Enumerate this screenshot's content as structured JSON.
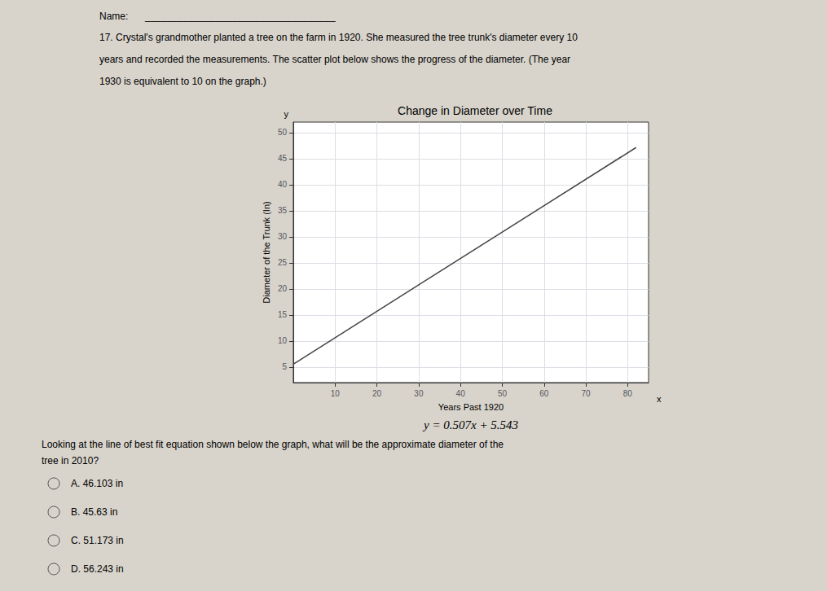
{
  "chart_data": {
    "type": "line",
    "title": "Change in Diameter over Time",
    "x_label": "Years Past 1920",
    "y_label": "Diameter of the Trunk (In)",
    "x": [
      0,
      82
    ],
    "values": [
      5.543,
      47.117
    ],
    "color": "#444444",
    "xlim": [
      0,
      85
    ],
    "xticks": [
      10,
      20,
      30,
      40,
      50,
      60,
      70,
      80
    ],
    "ylim": [
      2,
      52
    ],
    "yticks": [
      5,
      10,
      15,
      20,
      25,
      30,
      35,
      40,
      45,
      50
    ],
    "grid": true,
    "corner_labels": {
      "y": "y",
      "x": "x"
    },
    "equation": "y = 0.507x + 5.543",
    "name_label": "Name:",
    "name_line": "___________________________________",
    "question": [
      "17. Crystal's grandmother planted a tree on the farm in 1920. She measured the tree trunk's diameter every 10",
      "years and recorded the measurements. The scatter plot below shows the progress of the diameter. (The year",
      "1930 is equivalent to 10 on the graph.)"
    ],
    "question2": [
      "Looking at the line of best fit equation shown below the graph, what will be the approximate diameter of the",
      "tree in 2010?"
    ],
    "answers": [
      "A. 46.103 in",
      "B. 45.63 in",
      "C. 51.173 in",
      "D. 56.243 in"
    ]
  }
}
